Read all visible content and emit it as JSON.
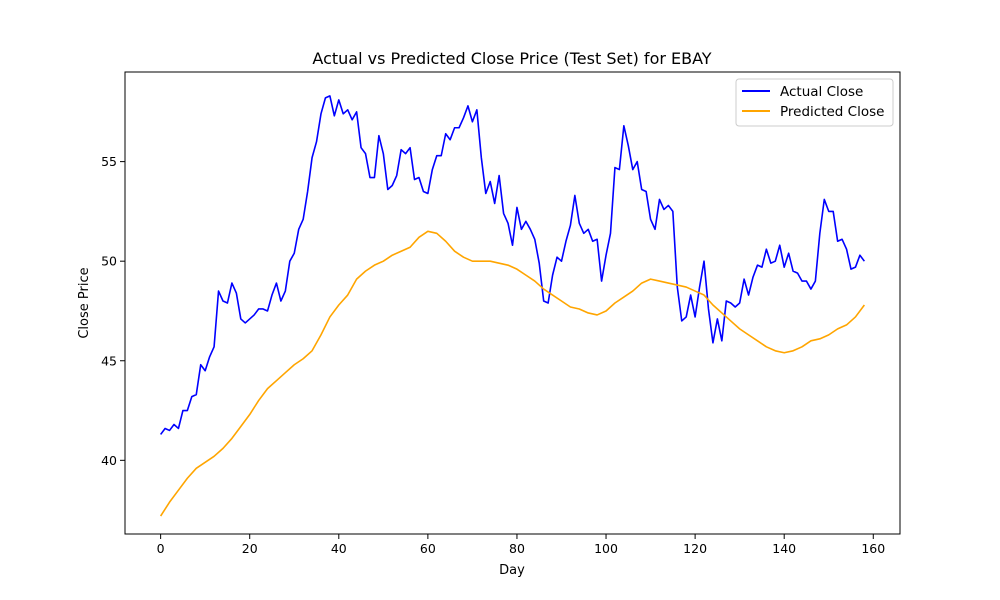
{
  "chart_data": {
    "type": "line",
    "title": "Actual vs Predicted Close Price (Test Set) for EBAY",
    "xlabel": "Day",
    "ylabel": "Close Price",
    "xlim": [
      -8,
      166
    ],
    "ylim": [
      36.3,
      59.5
    ],
    "xticks": [
      0,
      20,
      40,
      60,
      80,
      100,
      120,
      140,
      160
    ],
    "yticks": [
      40,
      45,
      50,
      55
    ],
    "grid": false,
    "legend": "top-right",
    "series": [
      {
        "name": "Actual Close",
        "color": "#0000ff",
        "points": [
          [
            0,
            41.3
          ],
          [
            1,
            41.6
          ],
          [
            2,
            41.5
          ],
          [
            3,
            41.8
          ],
          [
            4,
            41.6
          ],
          [
            5,
            42.5
          ],
          [
            6,
            42.5
          ],
          [
            7,
            43.2
          ],
          [
            8,
            43.3
          ],
          [
            9,
            44.8
          ],
          [
            10,
            44.5
          ],
          [
            11,
            45.2
          ],
          [
            12,
            45.7
          ],
          [
            13,
            48.5
          ],
          [
            14,
            48.0
          ],
          [
            15,
            47.9
          ],
          [
            16,
            48.9
          ],
          [
            17,
            48.4
          ],
          [
            18,
            47.1
          ],
          [
            19,
            46.9
          ],
          [
            20,
            47.1
          ],
          [
            21,
            47.3
          ],
          [
            22,
            47.6
          ],
          [
            23,
            47.6
          ],
          [
            24,
            47.5
          ],
          [
            25,
            48.3
          ],
          [
            26,
            48.9
          ],
          [
            27,
            48.0
          ],
          [
            28,
            48.5
          ],
          [
            29,
            50.0
          ],
          [
            30,
            50.4
          ],
          [
            31,
            51.6
          ],
          [
            32,
            52.1
          ],
          [
            33,
            53.5
          ],
          [
            34,
            55.2
          ],
          [
            35,
            56.0
          ],
          [
            36,
            57.4
          ],
          [
            37,
            58.2
          ],
          [
            38,
            58.3
          ],
          [
            39,
            57.3
          ],
          [
            40,
            58.1
          ],
          [
            41,
            57.4
          ],
          [
            42,
            57.6
          ],
          [
            43,
            57.1
          ],
          [
            44,
            57.5
          ],
          [
            45,
            55.7
          ],
          [
            46,
            55.4
          ],
          [
            47,
            54.2
          ],
          [
            48,
            54.2
          ],
          [
            49,
            56.3
          ],
          [
            50,
            55.4
          ],
          [
            51,
            53.6
          ],
          [
            52,
            53.8
          ],
          [
            53,
            54.3
          ],
          [
            54,
            55.6
          ],
          [
            55,
            55.4
          ],
          [
            56,
            55.7
          ],
          [
            57,
            54.1
          ],
          [
            58,
            54.2
          ],
          [
            59,
            53.5
          ],
          [
            60,
            53.4
          ],
          [
            61,
            54.6
          ],
          [
            62,
            55.3
          ],
          [
            63,
            55.3
          ],
          [
            64,
            56.4
          ],
          [
            65,
            56.1
          ],
          [
            66,
            56.7
          ],
          [
            67,
            56.7
          ],
          [
            68,
            57.2
          ],
          [
            69,
            57.8
          ],
          [
            70,
            57.0
          ],
          [
            71,
            57.6
          ],
          [
            72,
            55.2
          ],
          [
            73,
            53.4
          ],
          [
            74,
            54.0
          ],
          [
            75,
            52.9
          ],
          [
            76,
            54.3
          ],
          [
            77,
            52.4
          ],
          [
            78,
            51.9
          ],
          [
            79,
            50.8
          ],
          [
            80,
            52.7
          ],
          [
            81,
            51.6
          ],
          [
            82,
            52.0
          ],
          [
            83,
            51.6
          ],
          [
            84,
            51.1
          ],
          [
            85,
            49.9
          ],
          [
            86,
            48.0
          ],
          [
            87,
            47.9
          ],
          [
            88,
            49.3
          ],
          [
            89,
            50.2
          ],
          [
            90,
            50.0
          ],
          [
            91,
            51.0
          ],
          [
            92,
            51.8
          ],
          [
            93,
            53.3
          ],
          [
            94,
            51.9
          ],
          [
            95,
            51.4
          ],
          [
            96,
            51.6
          ],
          [
            97,
            51.0
          ],
          [
            98,
            51.1
          ],
          [
            99,
            49.0
          ],
          [
            100,
            50.3
          ],
          [
            101,
            51.4
          ],
          [
            102,
            54.7
          ],
          [
            103,
            54.6
          ],
          [
            104,
            56.8
          ],
          [
            105,
            55.8
          ],
          [
            106,
            54.6
          ],
          [
            107,
            55.0
          ],
          [
            108,
            53.6
          ],
          [
            109,
            53.5
          ],
          [
            110,
            52.1
          ],
          [
            111,
            51.6
          ],
          [
            112,
            53.1
          ],
          [
            113,
            52.6
          ],
          [
            114,
            52.8
          ],
          [
            115,
            52.5
          ],
          [
            116,
            48.7
          ],
          [
            117,
            47.0
          ],
          [
            118,
            47.2
          ],
          [
            119,
            48.3
          ],
          [
            120,
            47.2
          ],
          [
            121,
            48.7
          ],
          [
            122,
            50.0
          ],
          [
            123,
            47.6
          ],
          [
            124,
            45.9
          ],
          [
            125,
            47.1
          ],
          [
            126,
            46.0
          ],
          [
            127,
            48.0
          ],
          [
            128,
            47.9
          ],
          [
            129,
            47.7
          ],
          [
            130,
            47.9
          ],
          [
            131,
            49.1
          ],
          [
            132,
            48.3
          ],
          [
            133,
            49.2
          ],
          [
            134,
            49.8
          ],
          [
            135,
            49.7
          ],
          [
            136,
            50.6
          ],
          [
            137,
            49.9
          ],
          [
            138,
            50.0
          ],
          [
            139,
            50.8
          ],
          [
            140,
            49.7
          ],
          [
            141,
            50.4
          ],
          [
            142,
            49.5
          ],
          [
            143,
            49.4
          ],
          [
            144,
            49.0
          ],
          [
            145,
            49.0
          ],
          [
            146,
            48.6
          ],
          [
            147,
            49.0
          ],
          [
            148,
            51.4
          ],
          [
            149,
            53.1
          ],
          [
            150,
            52.5
          ],
          [
            151,
            52.5
          ],
          [
            152,
            51.0
          ],
          [
            153,
            51.1
          ],
          [
            154,
            50.6
          ],
          [
            155,
            49.6
          ],
          [
            156,
            49.7
          ],
          [
            157,
            50.3
          ],
          [
            158,
            50.0
          ]
        ]
      },
      {
        "name": "Predicted Close",
        "color": "#ffa500",
        "points": [
          [
            0,
            37.2
          ],
          [
            2,
            37.9
          ],
          [
            4,
            38.5
          ],
          [
            6,
            39.1
          ],
          [
            8,
            39.6
          ],
          [
            10,
            39.9
          ],
          [
            12,
            40.2
          ],
          [
            14,
            40.6
          ],
          [
            16,
            41.1
          ],
          [
            18,
            41.7
          ],
          [
            20,
            42.3
          ],
          [
            22,
            43.0
          ],
          [
            24,
            43.6
          ],
          [
            26,
            44.0
          ],
          [
            28,
            44.4
          ],
          [
            30,
            44.8
          ],
          [
            32,
            45.1
          ],
          [
            34,
            45.5
          ],
          [
            36,
            46.3
          ],
          [
            38,
            47.2
          ],
          [
            40,
            47.8
          ],
          [
            42,
            48.3
          ],
          [
            44,
            49.1
          ],
          [
            46,
            49.5
          ],
          [
            48,
            49.8
          ],
          [
            50,
            50.0
          ],
          [
            52,
            50.3
          ],
          [
            54,
            50.5
          ],
          [
            56,
            50.7
          ],
          [
            58,
            51.2
          ],
          [
            60,
            51.5
          ],
          [
            62,
            51.4
          ],
          [
            64,
            51.0
          ],
          [
            66,
            50.5
          ],
          [
            68,
            50.2
          ],
          [
            70,
            50.0
          ],
          [
            72,
            50.0
          ],
          [
            74,
            50.0
          ],
          [
            76,
            49.9
          ],
          [
            78,
            49.8
          ],
          [
            80,
            49.6
          ],
          [
            82,
            49.3
          ],
          [
            84,
            49.0
          ],
          [
            86,
            48.6
          ],
          [
            88,
            48.3
          ],
          [
            90,
            48.0
          ],
          [
            92,
            47.7
          ],
          [
            94,
            47.6
          ],
          [
            96,
            47.4
          ],
          [
            98,
            47.3
          ],
          [
            100,
            47.5
          ],
          [
            102,
            47.9
          ],
          [
            104,
            48.2
          ],
          [
            106,
            48.5
          ],
          [
            108,
            48.9
          ],
          [
            110,
            49.1
          ],
          [
            112,
            49.0
          ],
          [
            114,
            48.9
          ],
          [
            116,
            48.8
          ],
          [
            118,
            48.7
          ],
          [
            120,
            48.5
          ],
          [
            122,
            48.3
          ],
          [
            124,
            47.8
          ],
          [
            126,
            47.4
          ],
          [
            128,
            47.0
          ],
          [
            130,
            46.6
          ],
          [
            132,
            46.3
          ],
          [
            134,
            46.0
          ],
          [
            136,
            45.7
          ],
          [
            138,
            45.5
          ],
          [
            140,
            45.4
          ],
          [
            142,
            45.5
          ],
          [
            144,
            45.7
          ],
          [
            146,
            46.0
          ],
          [
            148,
            46.1
          ],
          [
            150,
            46.3
          ],
          [
            152,
            46.6
          ],
          [
            154,
            46.8
          ],
          [
            156,
            47.2
          ],
          [
            158,
            47.8
          ]
        ]
      }
    ]
  }
}
